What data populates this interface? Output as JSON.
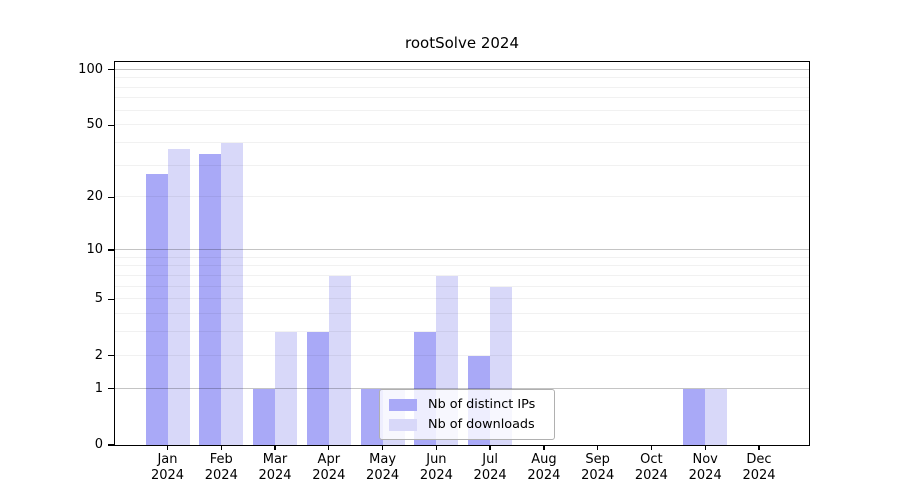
{
  "chart_data": {
    "type": "bar",
    "title": "rootSolve 2024",
    "categories": [
      "Jan",
      "Feb",
      "Mar",
      "Apr",
      "May",
      "Jun",
      "Jul",
      "Aug",
      "Sep",
      "Oct",
      "Nov",
      "Dec"
    ],
    "x_year_label": "2024",
    "series": [
      {
        "name": "Nb of distinct IPs",
        "color": "#a9a9f7",
        "values": [
          27,
          35,
          1,
          3,
          1,
          3,
          2,
          0,
          0,
          0,
          1,
          0
        ]
      },
      {
        "name": "Nb of downloads",
        "color": "#d8d8f9",
        "values": [
          37,
          40,
          3,
          7,
          1,
          7,
          6,
          0,
          0,
          0,
          1,
          0
        ]
      }
    ],
    "yscale": "log1p",
    "ylim": [
      0,
      110
    ],
    "yticks": [
      0,
      1,
      2,
      5,
      10,
      20,
      50,
      100
    ],
    "major_gridlines": [
      1,
      10,
      100
    ],
    "minor_gridlines": [
      2,
      3,
      4,
      5,
      6,
      7,
      8,
      9,
      20,
      30,
      40,
      50,
      60,
      70,
      80,
      90
    ],
    "grid": true,
    "legend_position": "lower center-right inside plot",
    "colors": {
      "background": "#ffffff",
      "spine": "#000000",
      "major_grid": "#c6c6c6",
      "minor_grid": "#ededed",
      "legend_border": "#b0b0b0"
    }
  }
}
